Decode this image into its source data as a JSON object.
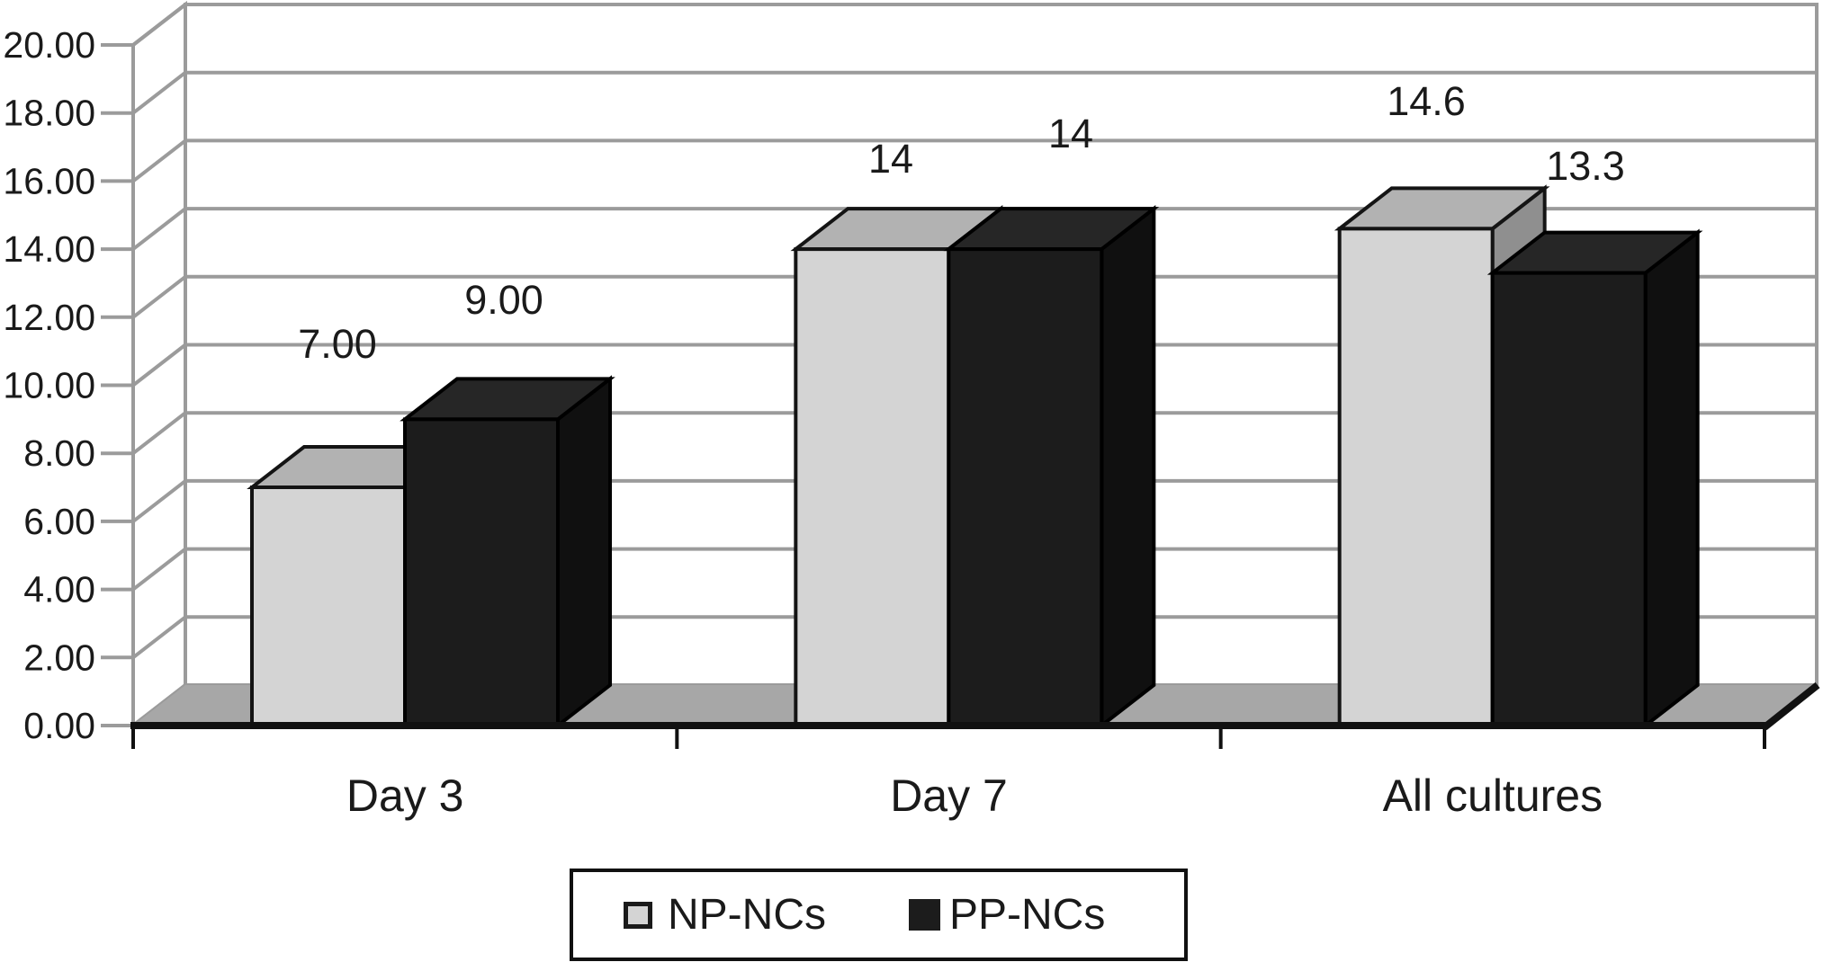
{
  "chart_data": {
    "type": "bar",
    "projection": "3d-column",
    "title": "",
    "xlabel": "",
    "ylabel": "",
    "categories": [
      "Day 3",
      "Day 7",
      "All cultures"
    ],
    "series": [
      {
        "name": "NP-NCs",
        "color": "#d4d4d4",
        "values": [
          7.0,
          14.0,
          14.6
        ],
        "value_labels": [
          "7.00",
          "14",
          "14.6"
        ]
      },
      {
        "name": "PP-NCs",
        "color": "#1c1c1c",
        "values": [
          9.0,
          14.0,
          13.3
        ],
        "value_labels": [
          "9.00",
          "14",
          "13.3"
        ]
      }
    ],
    "ylim": [
      0,
      20
    ],
    "y_tick_step": 2,
    "y_tick_labels": [
      "0.00",
      "2.00",
      "4.00",
      "6.00",
      "8.00",
      "10.00",
      "12.00",
      "14.00",
      "16.00",
      "18.00",
      "20.00"
    ],
    "grid": true,
    "grid_color": "#9b9b9b",
    "floor_color": "#a7a7a7",
    "axis_line_color": "#111111",
    "legend_position": "bottom"
  },
  "legend": {
    "items": [
      {
        "label": "NP-NCs",
        "color": "#d4d4d4"
      },
      {
        "label": "PP-NCs",
        "color": "#1c1c1c"
      }
    ]
  }
}
